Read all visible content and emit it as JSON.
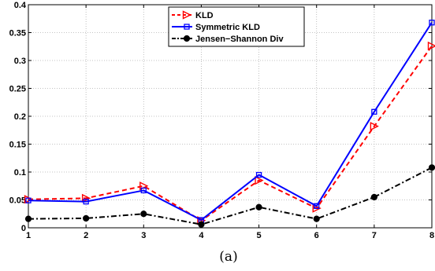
{
  "chart_data": {
    "type": "line",
    "x": [
      1,
      2,
      3,
      4,
      5,
      6,
      7,
      8
    ],
    "xlim": [
      1,
      8
    ],
    "ylim": [
      0,
      0.4
    ],
    "xticks": [
      "1",
      "2",
      "3",
      "4",
      "5",
      "6",
      "7",
      "8"
    ],
    "yticks": [
      "0",
      "0.05",
      "0.1",
      "0.15",
      "0.2",
      "0.25",
      "0.3",
      "0.35",
      "0.4"
    ],
    "grid": true,
    "legend_position": "top-center",
    "caption": "(a)",
    "series": [
      {
        "name": "KLD",
        "color": "#ff0000",
        "line_style": "dashed",
        "marker": "triangle-right",
        "values": [
          0.051,
          0.053,
          0.075,
          0.013,
          0.085,
          0.035,
          0.182,
          0.326
        ]
      },
      {
        "name": "Symmetric KLD",
        "color": "#0000ff",
        "line_style": "solid",
        "marker": "square",
        "values": [
          0.049,
          0.047,
          0.067,
          0.014,
          0.095,
          0.039,
          0.208,
          0.368
        ]
      },
      {
        "name": "Jensen−Shannon Div",
        "color": "#000000",
        "line_style": "dash-dot",
        "marker": "circle",
        "values": [
          0.016,
          0.017,
          0.025,
          0.006,
          0.037,
          0.016,
          0.055,
          0.108
        ]
      }
    ]
  }
}
